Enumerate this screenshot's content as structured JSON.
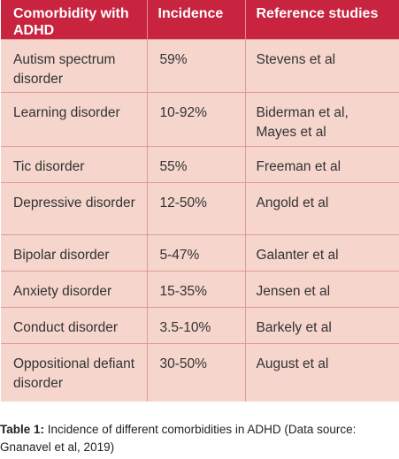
{
  "table": {
    "headers": [
      "Comorbidity with ADHD",
      "Incidence",
      "Reference studies"
    ],
    "rows": [
      {
        "condition": "Autism spectrum disorder",
        "incidence": "59%",
        "reference": "Stevens et al"
      },
      {
        "condition": "Learning disorder",
        "incidence": "10-92%",
        "reference": "Biderman et al, Mayes et al"
      },
      {
        "condition": "Tic disorder",
        "incidence": "55%",
        "reference": "Freeman et al"
      },
      {
        "condition": "Depressive disorder",
        "incidence": "12-50%",
        "reference": "Angold et al"
      },
      {
        "condition": "Bipolar disorder",
        "incidence": "5-47%",
        "reference": "Galanter et al"
      },
      {
        "condition": "Anxiety disorder",
        "incidence": "15-35%",
        "reference": "Jensen et al"
      },
      {
        "condition": "Conduct disorder",
        "incidence": "3.5-10%",
        "reference": "Barkely et al"
      },
      {
        "condition": "Oppositional defiant disorder",
        "incidence": "30-50%",
        "reference": "August et al"
      }
    ]
  },
  "caption": {
    "label": "Table 1:",
    "text": " Incidence of different comorbidities in ADHD (Data source: Gnanavel et al, 2019)"
  },
  "colors": {
    "header_bg": "#c8233f",
    "body_bg": "#f5d5cc",
    "border": "#dd9c92"
  }
}
